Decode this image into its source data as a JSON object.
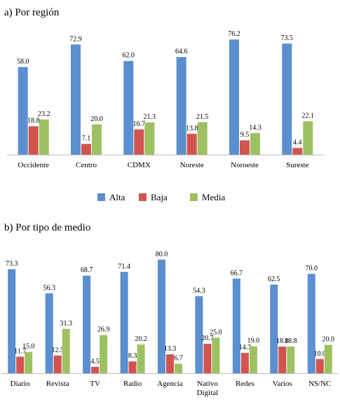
{
  "colors": {
    "Alta": "#5B8FCF",
    "Baja": "#D2544F",
    "Media": "#9DC162"
  },
  "legend": [
    {
      "name": "Alta",
      "color": "#5B8FCF"
    },
    {
      "name": "Baja",
      "color": "#D2544F"
    },
    {
      "name": "Media",
      "color": "#9DC162"
    }
  ],
  "chart_data": [
    {
      "type": "bar",
      "title": "a) Por región",
      "categories": [
        "Occidente",
        "Centro",
        "CDMX",
        "Noreste",
        "Noroeste",
        "Sureste"
      ],
      "series": [
        {
          "name": "Alta",
          "values": [
            58.0,
            72.9,
            62.0,
            64.6,
            76.2,
            73.5
          ]
        },
        {
          "name": "Baja",
          "values": [
            18.8,
            7.1,
            16.7,
            13.8,
            9.5,
            4.4
          ]
        },
        {
          "name": "Media",
          "values": [
            23.2,
            20.0,
            21.3,
            21.5,
            14.3,
            22.1
          ]
        }
      ],
      "ylim": [
        0,
        80
      ],
      "grid": false,
      "legend_position": "bottom"
    },
    {
      "type": "bar",
      "title": "b) Por tipo de medio",
      "categories": [
        "Diario",
        "Revista",
        "TV",
        "Radio",
        "Agencia",
        "Nativo Digital",
        "Redes",
        "Varios",
        "NS/NC"
      ],
      "series": [
        {
          "name": "Alta",
          "values": [
            73.3,
            56.3,
            68.7,
            71.4,
            80.0,
            54.3,
            66.7,
            62.5,
            70.0
          ]
        },
        {
          "name": "Baja",
          "values": [
            11.7,
            12.5,
            4.5,
            8.3,
            13.3,
            20.7,
            14.3,
            18.8,
            10.0
          ]
        },
        {
          "name": "Media",
          "values": [
            15.0,
            31.3,
            26.9,
            20.2,
            6.7,
            25.0,
            19.0,
            18.8,
            20.0
          ]
        }
      ],
      "ylim": [
        0,
        80
      ],
      "grid": false
    }
  ]
}
